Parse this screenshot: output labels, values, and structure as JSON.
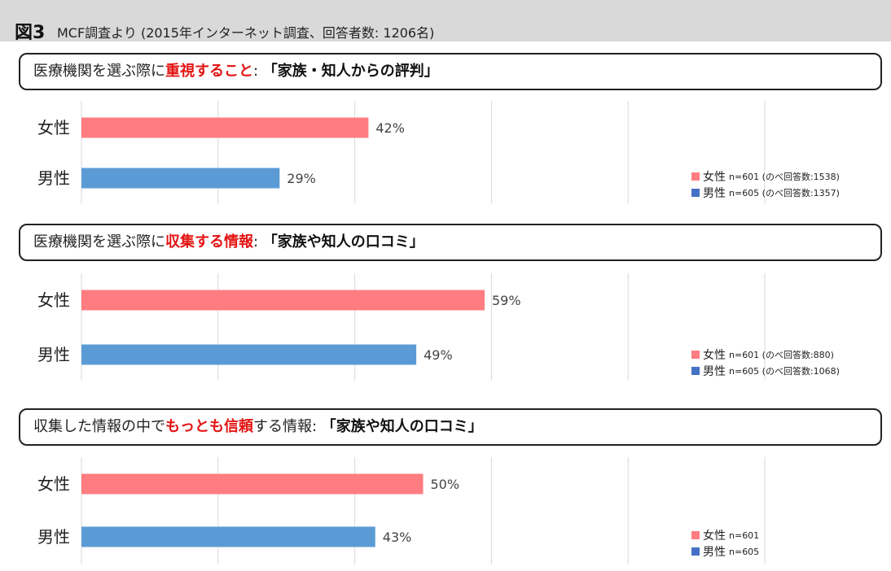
{
  "header": {
    "figure_label": "図3",
    "caption": "MCF調査より (2015年インターネット調査、回答者数: 1206名)"
  },
  "colors": {
    "female": "#ff7c80",
    "male": "#5b9bd5",
    "grid": "#d9d9d9",
    "highlight": "#e31414",
    "legend_male": "#4472c4"
  },
  "panels": [
    {
      "title": {
        "prefix": "医療機関を選ぶ際に",
        "highlight": "重視すること",
        "suffix": ": ",
        "quote": "「家族・知人からの評判」"
      },
      "legend": [
        {
          "label": "女性",
          "note": "n=601 (のべ回答数:1538)"
        },
        {
          "label": "男性",
          "note": "n=605 (のべ回答数:1357)"
        }
      ]
    },
    {
      "title": {
        "prefix": "医療機関を選ぶ際に",
        "highlight": "収集する情報",
        "suffix": ": ",
        "quote": "「家族や知人の口コミ」"
      },
      "legend": [
        {
          "label": "女性",
          "note": "n=601 (のべ回答数:880)"
        },
        {
          "label": "男性",
          "note": "n=605 (のべ回答数:1068)"
        }
      ]
    },
    {
      "title": {
        "prefix": "収集した情報の中で",
        "highlight": "もっとも信頼",
        "suffix": "する情報: ",
        "quote": "「家族や知人の口コミ」"
      },
      "legend": [
        {
          "label": "女性",
          "note": "n=601"
        },
        {
          "label": "男性",
          "note": "n=605"
        }
      ]
    }
  ],
  "chart_data": [
    {
      "type": "bar",
      "orientation": "horizontal",
      "categories": [
        "女性",
        "男性"
      ],
      "values": [
        42,
        29
      ],
      "value_labels": [
        "42%",
        "29%"
      ],
      "xlim": [
        0,
        100
      ],
      "grid": true
    },
    {
      "type": "bar",
      "orientation": "horizontal",
      "categories": [
        "女性",
        "男性"
      ],
      "values": [
        59,
        49
      ],
      "value_labels": [
        "59%",
        "49%"
      ],
      "xlim": [
        0,
        100
      ],
      "grid": true
    },
    {
      "type": "bar",
      "orientation": "horizontal",
      "categories": [
        "女性",
        "男性"
      ],
      "values": [
        50,
        43
      ],
      "value_labels": [
        "50%",
        "43%"
      ],
      "xlim": [
        0,
        100
      ],
      "grid": true
    }
  ]
}
